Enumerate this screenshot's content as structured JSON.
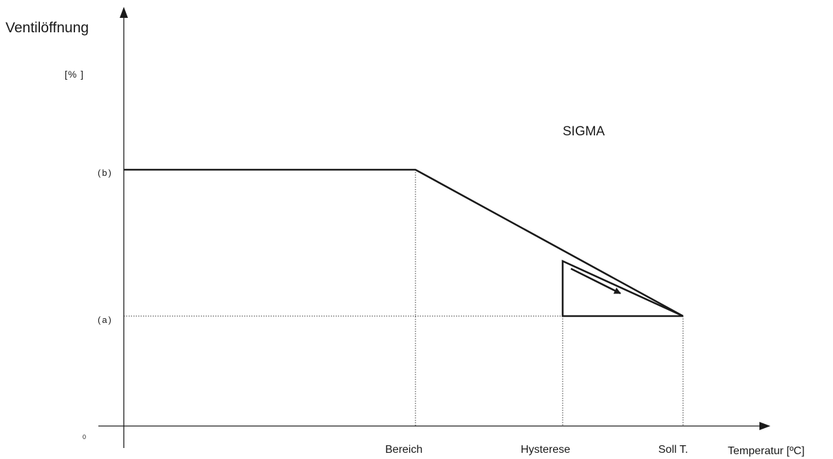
{
  "diagram": {
    "title": "SIGMA",
    "y_axis_title": "Ventilöffnung",
    "y_axis_unit": "[% ]",
    "x_axis_title": "Temperatur [ºC]",
    "origin_label": "0",
    "y_levels": {
      "high": "(b)",
      "low": "(a)"
    },
    "x_markers": {
      "range": "Bereich",
      "hysteresis": "Hysterese",
      "setpoint": "Soll T."
    }
  }
}
